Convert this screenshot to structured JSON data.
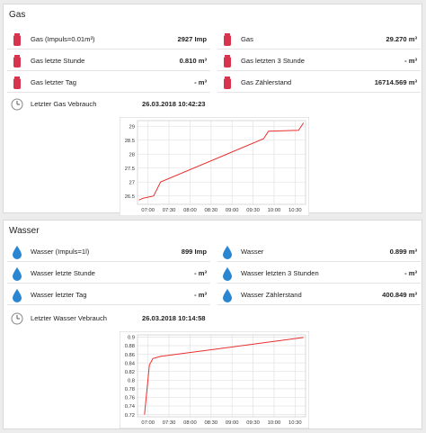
{
  "gas": {
    "title": "Gas",
    "rows_left": [
      {
        "icon": "gas-bottle-icon",
        "label": "Gas (Impuls=0.01m³)",
        "value": "2927 Imp"
      },
      {
        "icon": "gas-bottle-icon",
        "label": "Gas letzte Stunde",
        "value": "0.810 m³"
      },
      {
        "icon": "gas-bottle-icon",
        "label": "Gas letzter Tag",
        "value": "- m³"
      },
      {
        "icon": "clock-icon",
        "label": "Letzter Gas Vebrauch",
        "value": "26.03.2018 10:42:23"
      }
    ],
    "rows_right": [
      {
        "icon": "gas-bottle-icon",
        "label": "Gas",
        "value": "29.270 m³"
      },
      {
        "icon": "gas-bottle-icon",
        "label": "Gas letzten 3 Stunde",
        "value": "- m³"
      },
      {
        "icon": "gas-bottle-icon",
        "label": "Gas Zählerstand",
        "value": "16714.569 m³"
      }
    ]
  },
  "wasser": {
    "title": "Wasser",
    "rows_left": [
      {
        "icon": "water-drop-icon",
        "label": "Wasser (Impuls=1l)",
        "value": "899 Imp"
      },
      {
        "icon": "water-drop-icon",
        "label": "Wasser letzte Stunde",
        "value": "- m³"
      },
      {
        "icon": "water-drop-icon",
        "label": "Wasser letzter Tag",
        "value": "- m³"
      },
      {
        "icon": "clock-icon",
        "label": "Letzter Wasser Vebrauch",
        "value": "26.03.2018 10:14:58"
      }
    ],
    "rows_right": [
      {
        "icon": "water-drop-icon",
        "label": "Wasser",
        "value": "0.899 m³"
      },
      {
        "icon": "water-drop-icon",
        "label": "Wasser letzten 3 Stunden",
        "value": "- m³"
      },
      {
        "icon": "water-drop-icon",
        "label": "Wasser Zählerstand",
        "value": "400.849 m³"
      }
    ]
  },
  "colors": {
    "gas_icon": "#d8334f",
    "water_icon": "#2a86d1",
    "line": "#e8302f",
    "grid": "#e2e2e2"
  },
  "chart_data": [
    {
      "type": "line",
      "xlabel": "",
      "ylabel": "",
      "x_ticks": [
        "07:00",
        "07:30",
        "08:00",
        "08:30",
        "09:00",
        "09:30",
        "10:00",
        "10:30"
      ],
      "y_ticks": [
        26.5,
        27,
        27.5,
        28,
        28.5,
        29
      ],
      "xlim": [
        "06:45",
        "10:45"
      ],
      "ylim": [
        26.2,
        29.2
      ],
      "grid": true,
      "series": [
        {
          "x": [
            "06:47",
            "06:53",
            "07:08",
            "07:18",
            "09:45",
            "09:52",
            "10:35",
            "10:42"
          ],
          "y": [
            26.35,
            26.42,
            26.5,
            27.0,
            28.55,
            28.82,
            28.85,
            29.12
          ]
        }
      ]
    },
    {
      "type": "line",
      "xlabel": "",
      "ylabel": "",
      "x_ticks": [
        "07:00",
        "07:30",
        "08:00",
        "08:30",
        "09:00",
        "09:30",
        "10:00",
        "10:30"
      ],
      "y_ticks": [
        0.72,
        0.74,
        0.76,
        0.78,
        0.8,
        0.82,
        0.84,
        0.86,
        0.88,
        0.9
      ],
      "xlim": [
        "06:45",
        "10:45"
      ],
      "ylim": [
        0.715,
        0.905
      ],
      "grid": true,
      "series": [
        {
          "x": [
            "06:55",
            "07:02",
            "07:07",
            "07:18",
            "10:42"
          ],
          "y": [
            0.72,
            0.835,
            0.85,
            0.855,
            0.899
          ]
        }
      ]
    }
  ]
}
